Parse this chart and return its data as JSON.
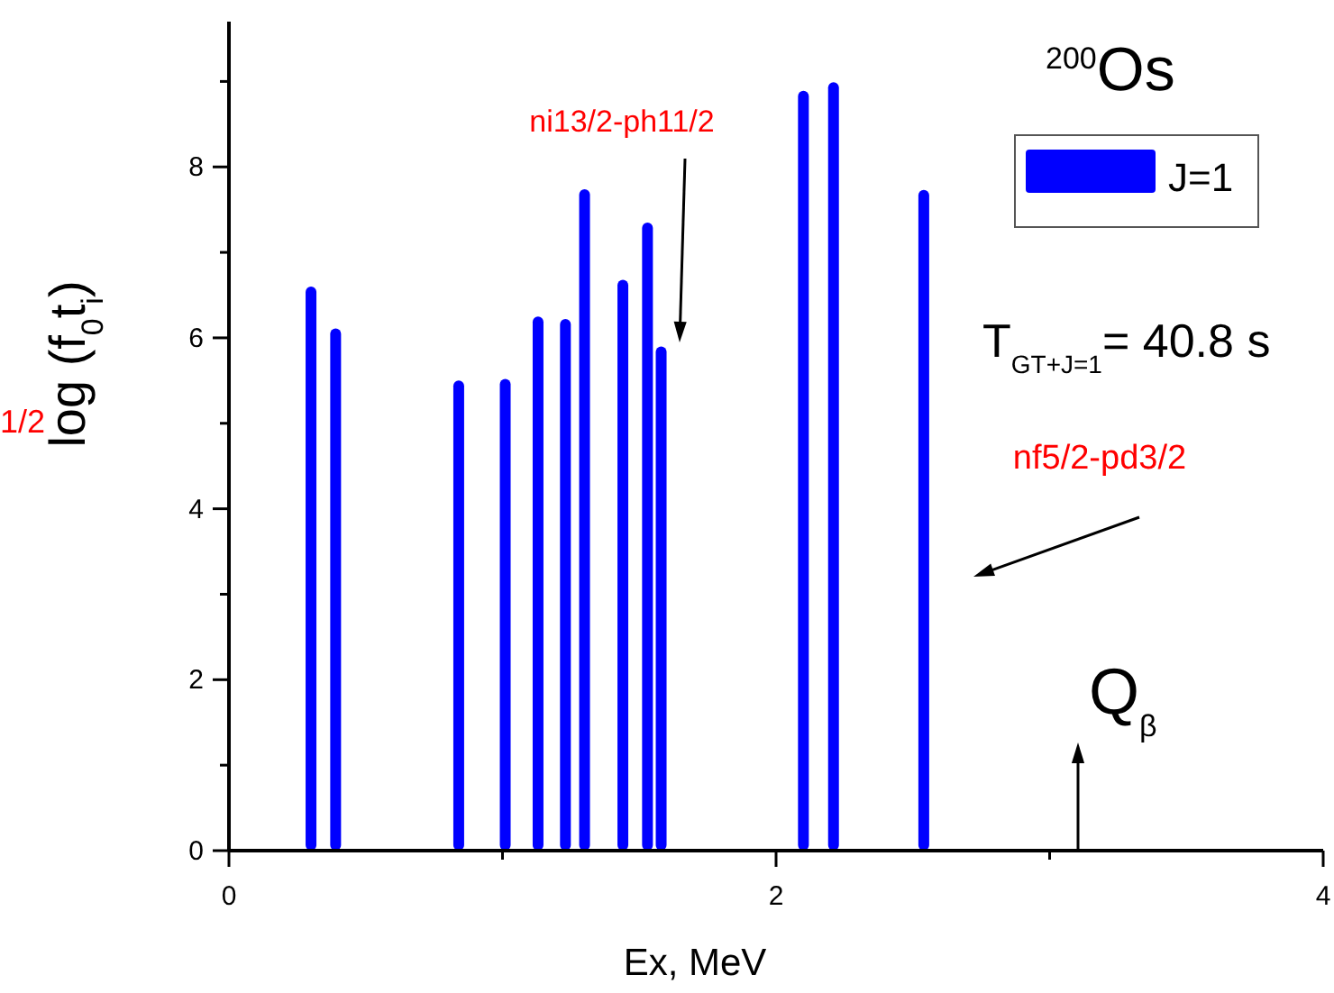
{
  "chart_data": {
    "type": "bar",
    "title": "$^{200}$Os",
    "xlabel": "Ex, MeV",
    "ylabel": "log (f$_{0}$t$_{i}$)",
    "x": [
      0.3,
      0.39,
      0.84,
      1.01,
      1.13,
      1.23,
      1.3,
      1.44,
      1.53,
      1.58,
      2.1,
      2.21,
      2.54
    ],
    "series": [
      {
        "name": "J=1",
        "color": "#0000ff",
        "values": [
          6.6,
          6.11,
          5.5,
          5.52,
          6.25,
          6.22,
          7.74,
          6.68,
          7.35,
          5.9,
          8.89,
          8.99,
          7.73
        ]
      }
    ],
    "xlim": [
      0,
      4
    ],
    "xticks": [
      0,
      {
        "value": 1,
        "label": null
      },
      2,
      {
        "value": 3,
        "label": null
      },
      4
    ],
    "ylim": [
      0,
      9.7
    ],
    "yticks": [
      0,
      {
        "value": 1,
        "label": null
      },
      2,
      {
        "value": 3,
        "label": null
      },
      4,
      {
        "value": 5,
        "label": null
      },
      6,
      {
        "value": 7,
        "label": null
      },
      8,
      {
        "value": 9,
        "label": null
      }
    ],
    "legend": "top right",
    "grid": false,
    "annotations": [
      "ni13/2-ph11/2",
      "nf5/2-pd3/2",
      "Q$_{β}$",
      "T$_{GT+J=1}$= 40.8 s",
      "1/2"
    ]
  }
}
